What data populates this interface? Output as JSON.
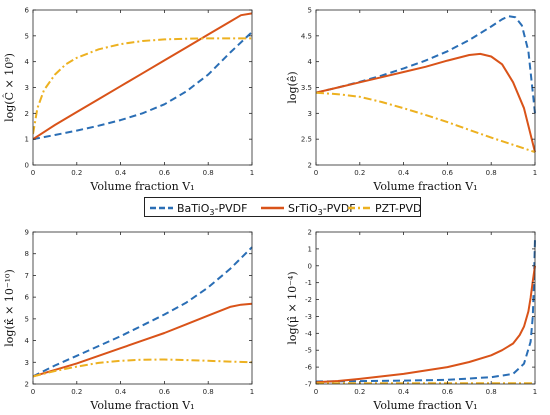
{
  "legend": {
    "entries": [
      {
        "base": "BaTiO",
        "sub": "3",
        "tail": "-PVDF",
        "color": "#2a6eb5",
        "dash": "7,4"
      },
      {
        "base": "SrTiO",
        "sub": "3",
        "tail": "-PVDF",
        "color": "#d95319",
        "dash": ""
      },
      {
        "base": "PZT-PVDF",
        "sub": "",
        "tail": "",
        "color": "#edb120",
        "dash": "8,3,2,3"
      }
    ]
  },
  "chart_data": [
    {
      "type": "line",
      "ylabel": "log(Ĉ × 10⁹)",
      "xlabel": "Volume fraction V₁",
      "xlim": [
        0,
        1
      ],
      "ylim": [
        0,
        6
      ],
      "xticks": [
        "0",
        "0.2",
        "0.4",
        "0.6",
        "0.8",
        "1"
      ],
      "yticks": [
        "0",
        "1",
        "2",
        "3",
        "4",
        "5",
        "6"
      ],
      "grid": false,
      "series": [
        {
          "name": "BaTiO3-PVDF",
          "x": [
            0,
            0.1,
            0.2,
            0.3,
            0.4,
            0.5,
            0.6,
            0.7,
            0.8,
            0.9,
            1.0
          ],
          "y": [
            1.0,
            1.16,
            1.33,
            1.52,
            1.74,
            2.0,
            2.35,
            2.85,
            3.5,
            4.35,
            5.15
          ]
        },
        {
          "name": "SrTiO3-PVDF",
          "x": [
            0,
            0.1,
            0.2,
            0.3,
            0.4,
            0.5,
            0.6,
            0.7,
            0.8,
            0.9,
            0.95,
            1.0
          ],
          "y": [
            1.0,
            1.55,
            2.05,
            2.55,
            3.05,
            3.55,
            4.05,
            4.55,
            5.05,
            5.55,
            5.8,
            5.87
          ]
        },
        {
          "name": "PZT-PVDF",
          "x": [
            0,
            0.02,
            0.05,
            0.1,
            0.15,
            0.2,
            0.3,
            0.4,
            0.5,
            0.6,
            0.7,
            0.8,
            0.9,
            1.0
          ],
          "y": [
            1.2,
            2.2,
            2.9,
            3.5,
            3.9,
            4.15,
            4.48,
            4.68,
            4.8,
            4.86,
            4.89,
            4.9,
            4.9,
            4.9
          ]
        }
      ]
    },
    {
      "type": "line",
      "ylabel": "log(ê)",
      "xlabel": "Volume fraction V₁",
      "xlim": [
        0,
        1
      ],
      "ylim": [
        2,
        5
      ],
      "xticks": [
        "0",
        "0.2",
        "0.4",
        "0.6",
        "0.8",
        "1"
      ],
      "yticks": [
        "2",
        "2.5",
        "3",
        "3.5",
        "4",
        "4.5",
        "5"
      ],
      "grid": false,
      "series": [
        {
          "name": "BaTiO3-PVDF",
          "x": [
            0,
            0.1,
            0.2,
            0.3,
            0.4,
            0.5,
            0.6,
            0.7,
            0.8,
            0.85,
            0.88,
            0.91,
            0.94,
            0.97,
            1.0
          ],
          "y": [
            3.4,
            3.5,
            3.61,
            3.73,
            3.87,
            4.02,
            4.2,
            4.42,
            4.68,
            4.82,
            4.88,
            4.86,
            4.7,
            4.2,
            3.0
          ]
        },
        {
          "name": "SrTiO3-PVDF",
          "x": [
            0,
            0.1,
            0.2,
            0.3,
            0.4,
            0.5,
            0.6,
            0.7,
            0.75,
            0.8,
            0.85,
            0.9,
            0.95,
            1.0
          ],
          "y": [
            3.4,
            3.5,
            3.6,
            3.7,
            3.8,
            3.9,
            4.02,
            4.13,
            4.15,
            4.1,
            3.95,
            3.6,
            3.1,
            2.25
          ]
        },
        {
          "name": "PZT-PVDF",
          "x": [
            0,
            0.1,
            0.2,
            0.3,
            0.4,
            0.5,
            0.6,
            0.7,
            0.8,
            0.9,
            1.0
          ],
          "y": [
            3.4,
            3.37,
            3.32,
            3.22,
            3.1,
            2.97,
            2.83,
            2.68,
            2.53,
            2.39,
            2.25
          ]
        }
      ]
    },
    {
      "type": "line",
      "ylabel": "log(κ̂ × 10⁻¹⁰)",
      "xlabel": "Volume fraction V₁",
      "xlim": [
        0,
        1
      ],
      "ylim": [
        2,
        9
      ],
      "xticks": [
        "0",
        "0.2",
        "0.4",
        "0.6",
        "0.8",
        "1"
      ],
      "yticks": [
        "2",
        "3",
        "4",
        "5",
        "6",
        "7",
        "8",
        "9"
      ],
      "grid": false,
      "series": [
        {
          "name": "BaTiO3-PVDF",
          "x": [
            0,
            0.1,
            0.2,
            0.3,
            0.4,
            0.5,
            0.6,
            0.7,
            0.8,
            0.9,
            1.0
          ],
          "y": [
            2.35,
            2.85,
            3.3,
            3.75,
            4.2,
            4.7,
            5.2,
            5.75,
            6.45,
            7.3,
            8.3
          ]
        },
        {
          "name": "SrTiO3-PVDF",
          "x": [
            0,
            0.1,
            0.2,
            0.3,
            0.4,
            0.5,
            0.6,
            0.7,
            0.8,
            0.9,
            0.95,
            1.0
          ],
          "y": [
            2.35,
            2.65,
            2.95,
            3.3,
            3.65,
            4.0,
            4.35,
            4.75,
            5.15,
            5.55,
            5.65,
            5.7
          ]
        },
        {
          "name": "PZT-PVDF",
          "x": [
            0,
            0.1,
            0.2,
            0.3,
            0.4,
            0.5,
            0.6,
            0.7,
            0.8,
            0.9,
            1.0
          ],
          "y": [
            2.35,
            2.6,
            2.8,
            2.97,
            3.07,
            3.12,
            3.13,
            3.1,
            3.07,
            3.03,
            3.0
          ]
        }
      ]
    },
    {
      "type": "line",
      "ylabel": "log(μ̂ × 10⁻⁴)",
      "xlabel": "Volume fraction V₁",
      "xlim": [
        0,
        1
      ],
      "ylim": [
        -7,
        2
      ],
      "xticks": [
        "0",
        "0.2",
        "0.4",
        "0.6",
        "0.8",
        "1"
      ],
      "yticks": [
        "-7",
        "-6",
        "-5",
        "-4",
        "-3",
        "-2",
        "-1",
        "0",
        "1",
        "2"
      ],
      "grid": false,
      "series": [
        {
          "name": "BaTiO3-PVDF",
          "x": [
            0,
            0.2,
            0.4,
            0.6,
            0.8,
            0.9,
            0.95,
            0.98,
            0.99,
            0.995,
            1.0
          ],
          "y": [
            -6.85,
            -6.83,
            -6.8,
            -6.75,
            -6.6,
            -6.4,
            -5.8,
            -4.5,
            -3.0,
            -1.0,
            1.6
          ]
        },
        {
          "name": "SrTiO3-PVDF",
          "x": [
            0,
            0.1,
            0.2,
            0.3,
            0.4,
            0.5,
            0.6,
            0.7,
            0.8,
            0.85,
            0.9,
            0.93,
            0.95,
            0.97,
            0.98,
            0.99,
            1.0
          ],
          "y": [
            -6.9,
            -6.82,
            -6.7,
            -6.55,
            -6.4,
            -6.2,
            -6.0,
            -5.7,
            -5.3,
            -5.0,
            -4.6,
            -4.1,
            -3.6,
            -2.7,
            -1.9,
            -0.9,
            0.0
          ]
        },
        {
          "name": "PZT-PVDF",
          "x": [
            0,
            0.2,
            0.4,
            0.6,
            0.8,
            1.0
          ],
          "y": [
            -6.95,
            -6.95,
            -6.95,
            -6.95,
            -6.95,
            -6.95
          ]
        }
      ]
    }
  ]
}
